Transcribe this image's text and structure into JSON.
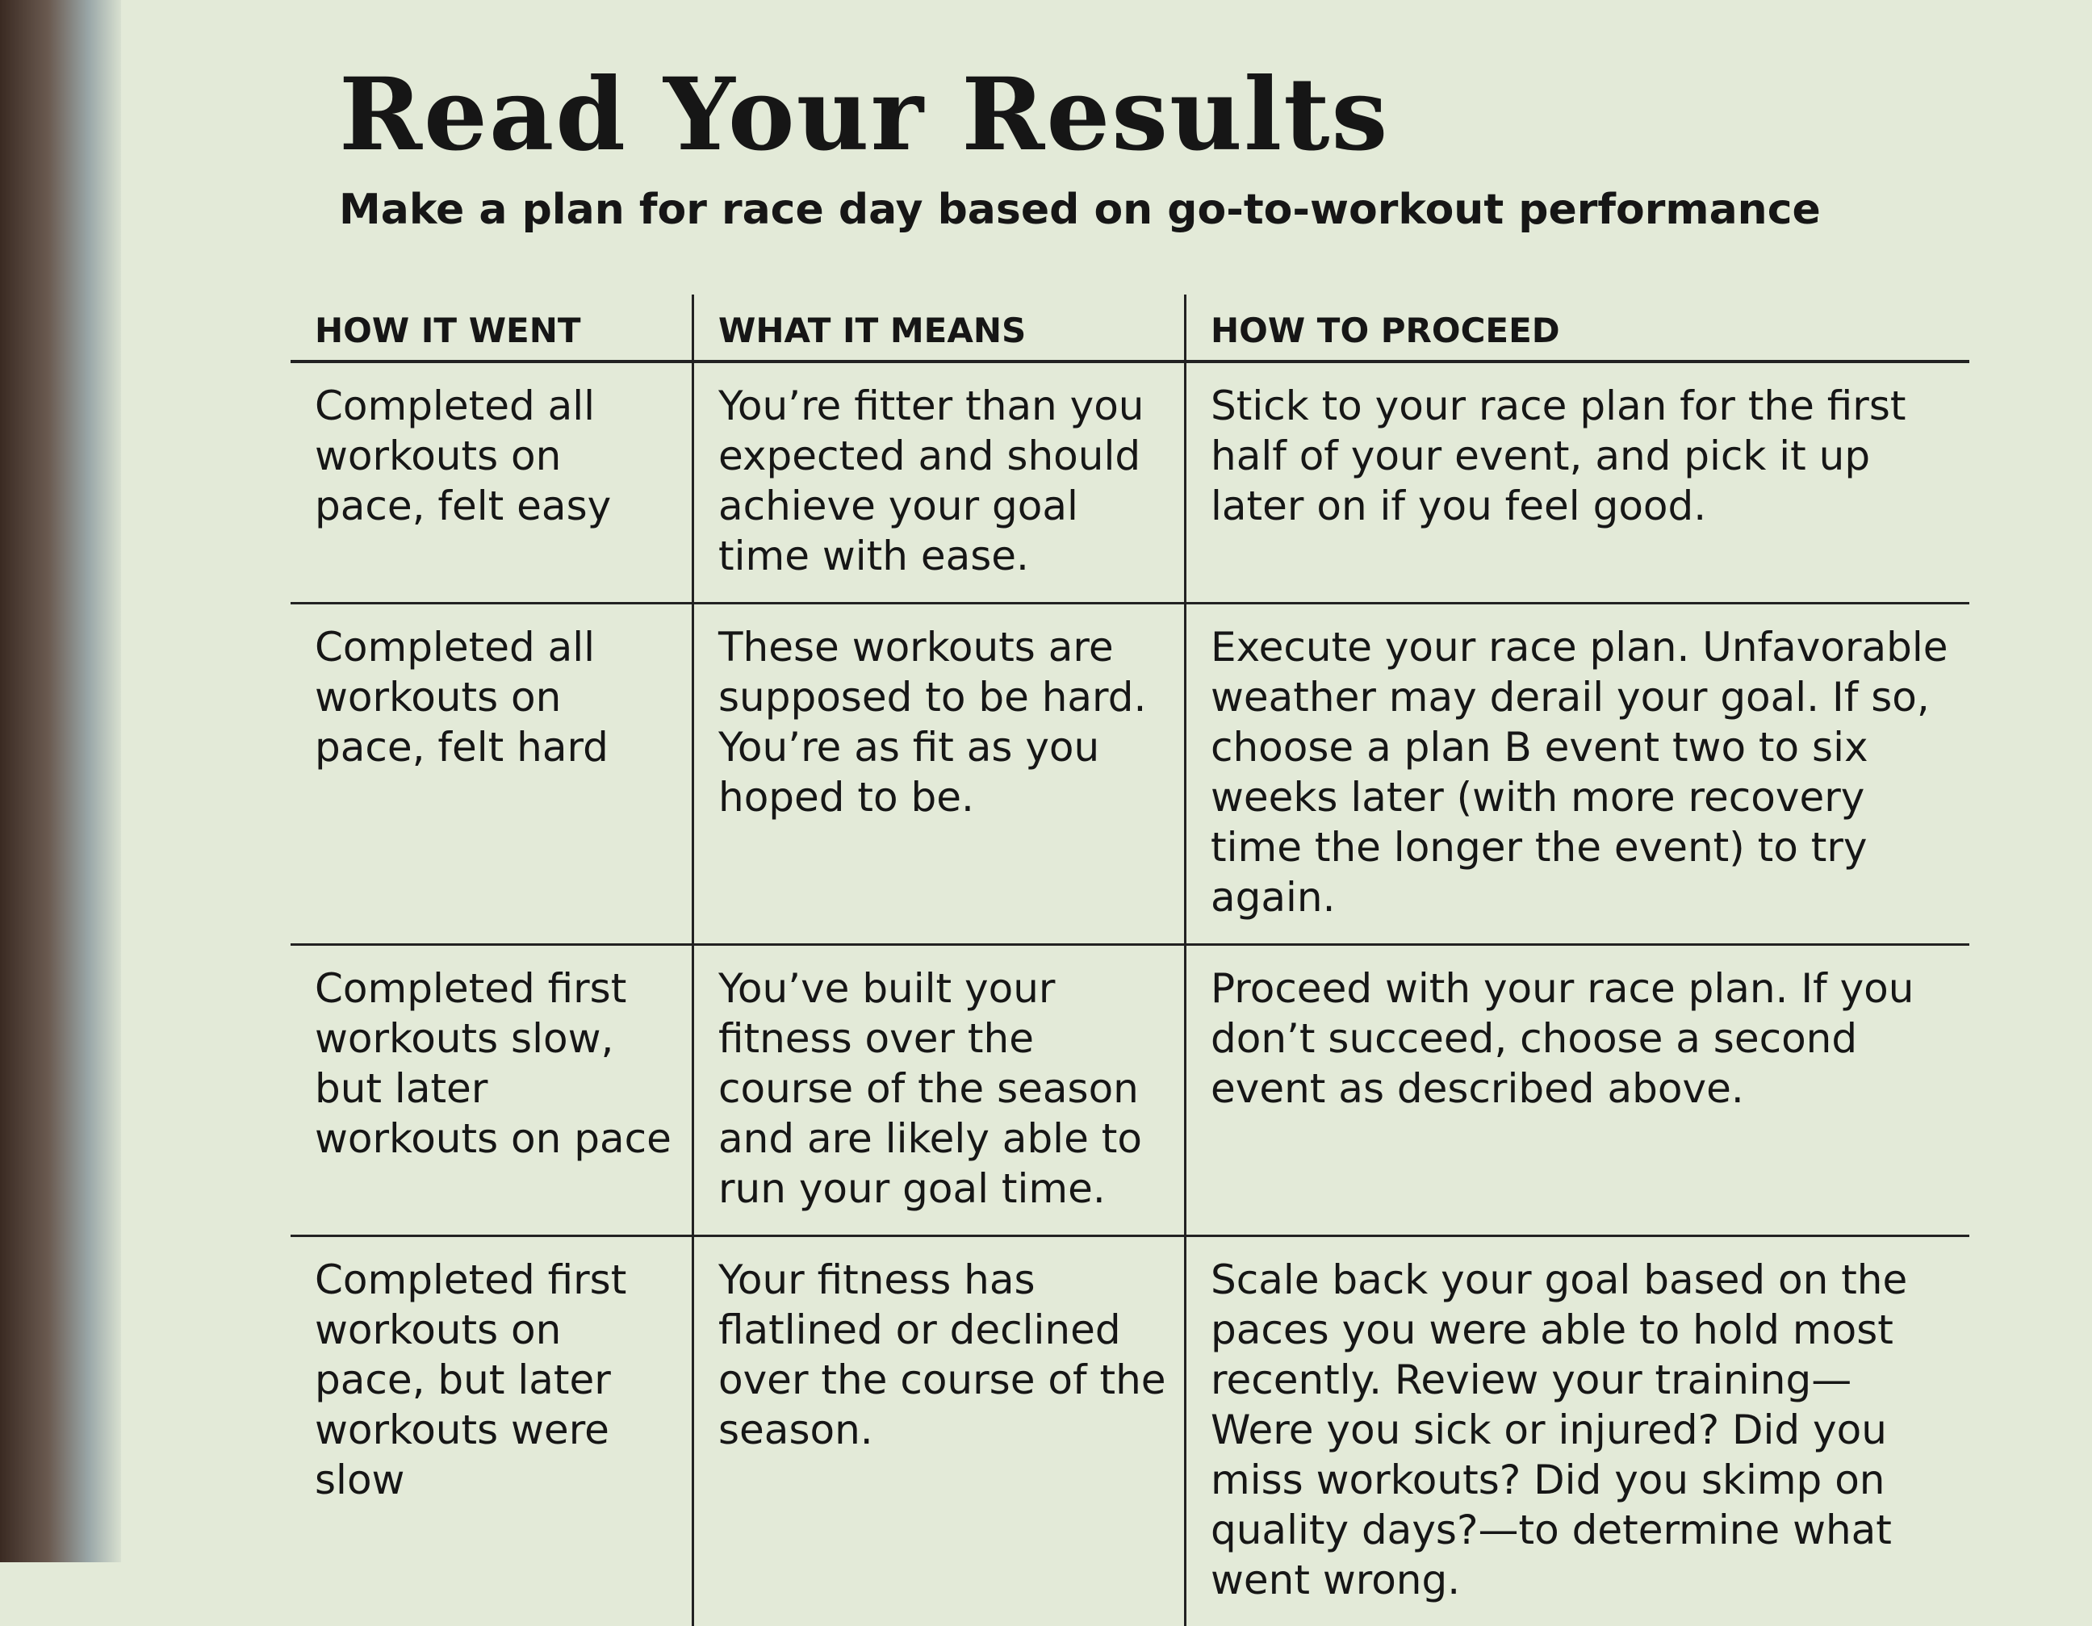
{
  "header": {
    "title": "Read Your Results",
    "subtitle": "Make a plan for race day based on go-to-workout performance"
  },
  "table": {
    "columns": [
      "HOW IT WENT",
      "WHAT IT MEANS",
      "HOW TO PROCEED"
    ],
    "rows": [
      [
        "Completed all workouts on pace, felt easy",
        "You’re fitter than you expected and should achieve your goal time with ease.",
        "Stick to your race plan for the first half of your event, and pick it up later on if you feel good."
      ],
      [
        "Completed all workouts on pace, felt hard",
        "These workouts are supposed to be hard. You’re as fit as you hoped to be.",
        "Execute your race plan. Unfavorable weather may derail your goal. If so, choose a plan B event two to six weeks later (with more recovery time the longer the event) to try again."
      ],
      [
        "Completed first workouts slow, but later workouts on pace",
        "You’ve built your fitness over the course of the season and are likely able to run your goal time.",
        "Proceed with your race plan. If you don’t succeed, choose a second event as described above."
      ],
      [
        "Completed first workouts on pace, but later workouts were slow",
        "Your fitness has flatlined or declined over the course of the season.",
        "Scale back your goal based on the paces you were able to hold most recently. Review your training—Were you sick or injured? Did you miss workouts? Did you skimp on quality days?—to determine what went wrong."
      ]
    ]
  }
}
